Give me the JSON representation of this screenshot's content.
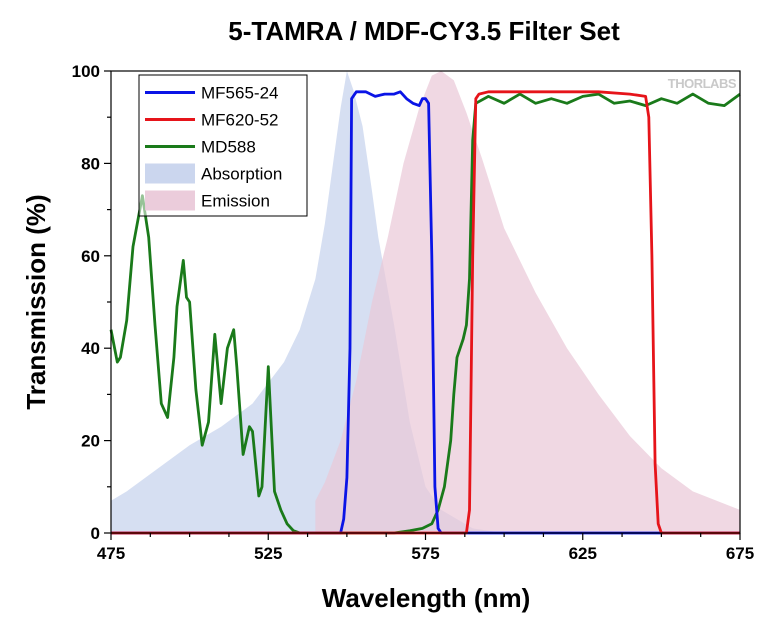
{
  "chart_data": {
    "type": "line",
    "title": "5-TAMRA / MDF-CY3.5 Filter Set",
    "xlabel": "Wavelength (nm)",
    "ylabel": "Transmission (%)",
    "xlim": [
      475,
      675
    ],
    "ylim": [
      0,
      100
    ],
    "xticks": [
      475,
      525,
      575,
      625,
      675
    ],
    "yticks": [
      0,
      20,
      40,
      60,
      80,
      100
    ],
    "brand": "THORLABS",
    "legend_position": "top-left",
    "grid": false,
    "series": [
      {
        "name": "MF565-24",
        "kind": "line",
        "color": "#0a14e6",
        "x": [
          475,
          548,
          549,
          550,
          551,
          551.5,
          553,
          556,
          559,
          562,
          565,
          567,
          569,
          571,
          573,
          574,
          575,
          576,
          577,
          578,
          579,
          580,
          675
        ],
        "y": [
          0,
          0,
          3,
          12,
          40,
          94,
          95.5,
          95.5,
          94.5,
          95,
          95,
          95.5,
          94,
          93,
          92.5,
          94,
          94,
          93,
          60,
          10,
          1,
          0,
          0
        ]
      },
      {
        "name": "MF620-52",
        "kind": "line",
        "color": "#e6141a",
        "x": [
          475,
          588,
          589,
          590,
          591,
          592,
          595,
          600,
          610,
          620,
          630,
          640,
          645,
          646,
          647,
          648,
          649,
          650,
          675
        ],
        "y": [
          0,
          0,
          5,
          60,
          94,
          95,
          95.5,
          95.5,
          95.5,
          95.5,
          95.5,
          95,
          94.5,
          90,
          60,
          15,
          2,
          0,
          0
        ]
      },
      {
        "name": "MD588",
        "kind": "line",
        "color": "#1a7a1a",
        "x": [
          475,
          477,
          478,
          480,
          482,
          485,
          487,
          489,
          491,
          493,
          495,
          496,
          498,
          499,
          500,
          502,
          504,
          506,
          508,
          510,
          512,
          514,
          515,
          517,
          519,
          520,
          522,
          523,
          525,
          527,
          529,
          531,
          533,
          535,
          540,
          550,
          560,
          565,
          570,
          574,
          577,
          579,
          581,
          583,
          584,
          585,
          586,
          587,
          588,
          589,
          590,
          591,
          595,
          600,
          605,
          610,
          615,
          620,
          625,
          630,
          635,
          640,
          645,
          650,
          655,
          660,
          665,
          670,
          675
        ],
        "y": [
          44,
          37,
          38,
          46,
          62,
          73,
          64,
          45,
          28,
          25,
          38,
          49,
          59,
          51,
          50,
          31,
          19,
          24,
          43,
          28,
          40,
          44,
          36,
          17,
          23,
          22,
          8,
          10,
          36,
          9,
          5,
          2,
          0.5,
          0,
          0,
          0,
          0,
          0,
          0.5,
          1,
          2,
          5,
          10,
          20,
          30,
          38,
          40,
          42,
          45,
          55,
          85,
          93,
          94.5,
          93,
          95,
          93,
          94,
          93,
          94.5,
          95,
          93,
          93.5,
          92.5,
          94,
          93,
          95,
          93,
          92.5,
          95
        ]
      },
      {
        "name": "Absorption",
        "kind": "area",
        "color": "#c5d1ec",
        "x": [
          475,
          480,
          490,
          500,
          510,
          520,
          530,
          535,
          540,
          543,
          546,
          548,
          550,
          552,
          555,
          558,
          560,
          565,
          570,
          575,
          580,
          590,
          600
        ],
        "y": [
          7,
          9,
          14,
          19,
          23,
          28,
          37,
          44,
          55,
          67,
          82,
          92,
          100,
          96,
          88,
          74,
          64,
          45,
          24,
          10,
          5,
          1,
          0
        ]
      },
      {
        "name": "Emission",
        "kind": "area",
        "color": "#e9c7d7",
        "x": [
          540,
          543,
          548,
          553,
          558,
          563,
          568,
          573,
          577,
          580,
          584,
          588,
          593,
          600,
          610,
          620,
          630,
          640,
          650,
          660,
          675
        ],
        "y": [
          7,
          11,
          20,
          33,
          50,
          64,
          80,
          92,
          99,
          100,
          98,
          91,
          81,
          66,
          52,
          40,
          30,
          21,
          14,
          9,
          5
        ]
      }
    ]
  }
}
